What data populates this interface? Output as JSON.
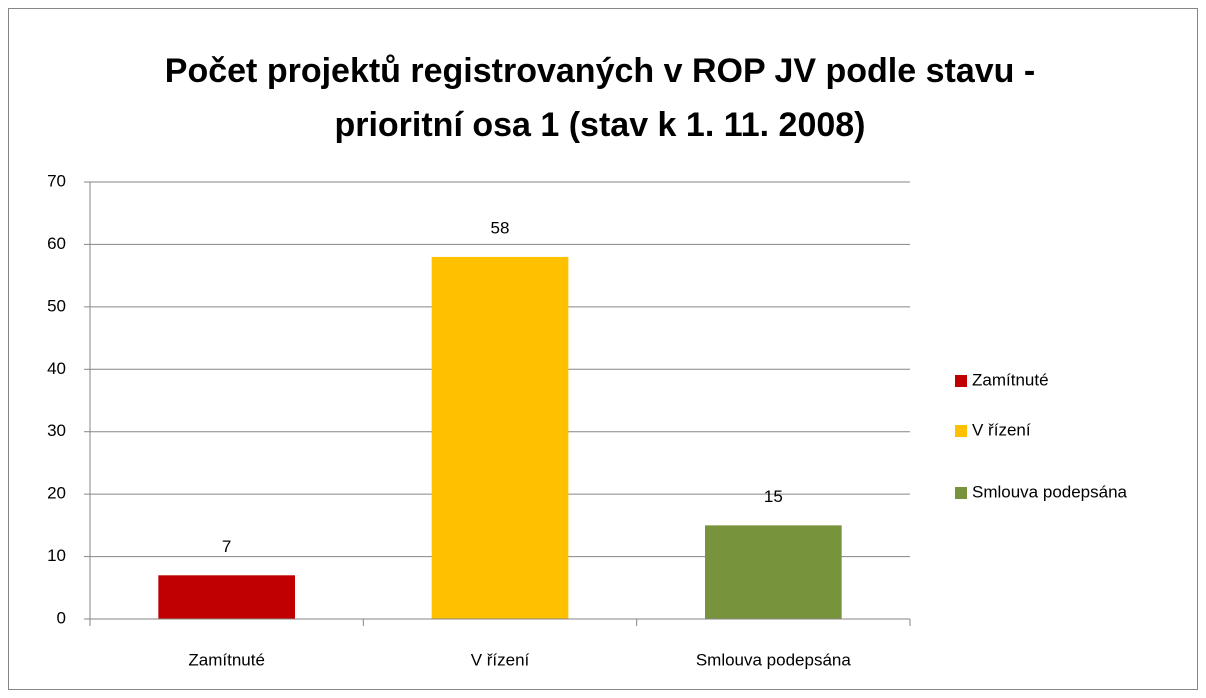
{
  "chart_data": {
    "type": "bar",
    "title": "Počet projektů registrovaných v ROP JV podle stavu - prioritní osa 1 (stav k 1. 11. 2008)",
    "categories": [
      "Zamítnuté",
      "V řízení",
      "Smlouva podepsána"
    ],
    "values": [
      7,
      58,
      15
    ],
    "colors": [
      "#c00000",
      "#ffc000",
      "#77933c"
    ],
    "ylim": [
      0,
      70
    ],
    "yticks": [
      0,
      10,
      20,
      30,
      40,
      50,
      60,
      70
    ],
    "grid": true,
    "legend": "right",
    "data_labels": true
  }
}
